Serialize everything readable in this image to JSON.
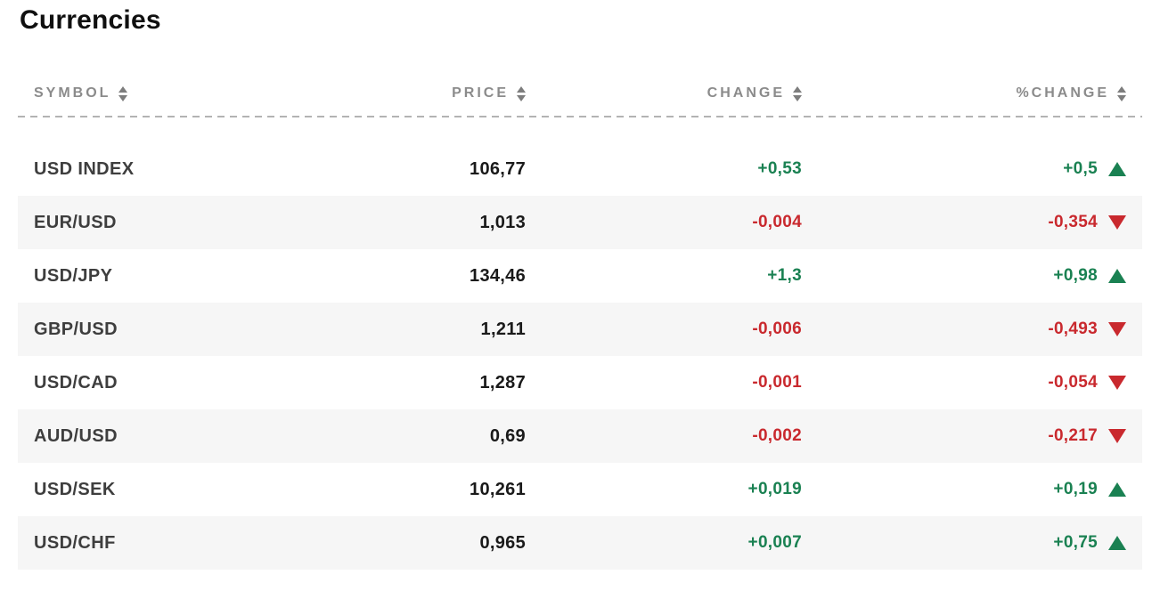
{
  "title": "Currencies",
  "colors": {
    "up": "#1a8152",
    "down": "#c9292e",
    "stripe": "#f6f6f6",
    "header_text": "#8b8b8b",
    "symbol_text": "#3e3e3e",
    "price_text": "#1a1a1a"
  },
  "table": {
    "columns": [
      {
        "label": "SYMBOL",
        "sortable": true
      },
      {
        "label": "PRICE",
        "sortable": true
      },
      {
        "label": "CHANGE",
        "sortable": true
      },
      {
        "label": "%CHANGE",
        "sortable": true
      }
    ],
    "rows": [
      {
        "symbol": "USD INDEX",
        "price": "106,77",
        "change": "+0,53",
        "pct_change": "+0,5",
        "direction": "up"
      },
      {
        "symbol": "EUR/USD",
        "price": "1,013",
        "change": "-0,004",
        "pct_change": "-0,354",
        "direction": "down"
      },
      {
        "symbol": "USD/JPY",
        "price": "134,46",
        "change": "+1,3",
        "pct_change": "+0,98",
        "direction": "up"
      },
      {
        "symbol": "GBP/USD",
        "price": "1,211",
        "change": "-0,006",
        "pct_change": "-0,493",
        "direction": "down"
      },
      {
        "symbol": "USD/CAD",
        "price": "1,287",
        "change": "-0,001",
        "pct_change": "-0,054",
        "direction": "down"
      },
      {
        "symbol": "AUD/USD",
        "price": "0,69",
        "change": "-0,002",
        "pct_change": "-0,217",
        "direction": "down"
      },
      {
        "symbol": "USD/SEK",
        "price": "10,261",
        "change": "+0,019",
        "pct_change": "+0,19",
        "direction": "up"
      },
      {
        "symbol": "USD/CHF",
        "price": "0,965",
        "change": "+0,007",
        "pct_change": "+0,75",
        "direction": "up"
      }
    ]
  }
}
